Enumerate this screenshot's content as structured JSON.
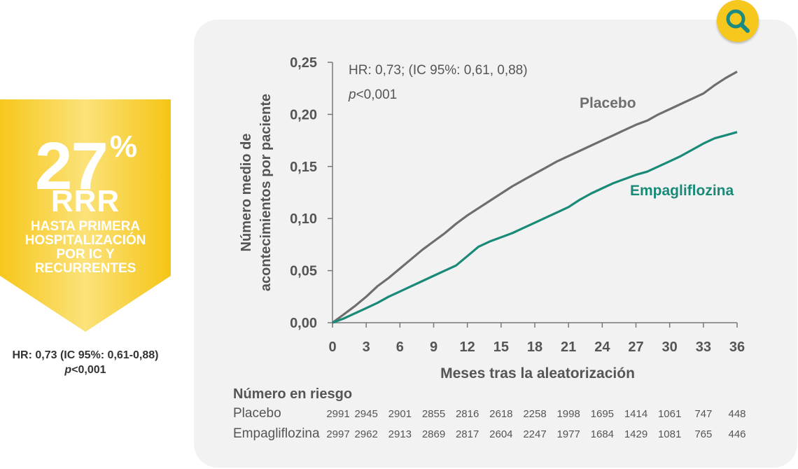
{
  "badge": {
    "percent": "27",
    "percent_symbol": "%",
    "rrr": "RRR",
    "subtitle_lines": [
      "HASTA PRIMERA",
      "HOSPITALIZACIÓN",
      "POR IC Y",
      "RECURRENTES"
    ],
    "hr_line1": "HR: 0,73 (IC 95%: 0,61-0,88)",
    "hr_line2_p": "p",
    "hr_line2_rest": "<0,001",
    "color": "#f6c71d"
  },
  "zoom_button": {
    "icon": "magnifier-icon",
    "color": "#f6c71d",
    "icon_color": "#1a8a82"
  },
  "chart_data": {
    "type": "line",
    "annotation_line1": "HR: 0,73; (IC 95%: 0,61, 0,88)",
    "annotation_p": "p",
    "annotation_line2_rest": "<0,001",
    "xlabel": "Meses tras la aleatorización",
    "ylabel_lines": [
      "Número medio de",
      "acontecimientos por paciente"
    ],
    "xlim": [
      0,
      36
    ],
    "ylim": [
      0,
      0.25
    ],
    "x_ticks": [
      0,
      3,
      6,
      9,
      12,
      15,
      18,
      21,
      24,
      27,
      30,
      33,
      36
    ],
    "x_tick_labels": [
      "0",
      "3",
      "6",
      "9",
      "12",
      "15",
      "18",
      "21",
      "24",
      "27",
      "30",
      "33",
      "36"
    ],
    "y_ticks": [
      0,
      0.05,
      0.1,
      0.15,
      0.2,
      0.25
    ],
    "y_tick_labels": [
      "0,00",
      "0,05",
      "0,10",
      "0,15",
      "0,20",
      "0,25"
    ],
    "series": [
      {
        "name": "Placebo",
        "color": "#6e6e6e",
        "x": [
          0,
          1,
          2,
          3,
          4,
          5,
          6,
          7,
          8,
          9,
          10,
          11,
          12,
          13,
          14,
          15,
          16,
          17,
          18,
          19,
          20,
          21,
          22,
          23,
          24,
          25,
          26,
          27,
          28,
          29,
          30,
          31,
          32,
          33,
          34,
          35,
          36
        ],
        "values": [
          0.0,
          0.008,
          0.016,
          0.025,
          0.035,
          0.043,
          0.052,
          0.061,
          0.07,
          0.078,
          0.086,
          0.095,
          0.103,
          0.11,
          0.117,
          0.124,
          0.131,
          0.137,
          0.143,
          0.149,
          0.155,
          0.16,
          0.165,
          0.17,
          0.175,
          0.18,
          0.185,
          0.19,
          0.194,
          0.2,
          0.205,
          0.21,
          0.215,
          0.22,
          0.228,
          0.235,
          0.241
        ]
      },
      {
        "name": "Empagliflozina",
        "color": "#1a8a78",
        "x": [
          0,
          1,
          2,
          3,
          4,
          5,
          6,
          7,
          8,
          9,
          10,
          11,
          12,
          13,
          14,
          15,
          16,
          17,
          18,
          19,
          20,
          21,
          22,
          23,
          24,
          25,
          26,
          27,
          28,
          29,
          30,
          31,
          32,
          33,
          34,
          35,
          36
        ],
        "values": [
          0.0,
          0.004,
          0.009,
          0.014,
          0.019,
          0.025,
          0.03,
          0.035,
          0.04,
          0.045,
          0.05,
          0.055,
          0.064,
          0.073,
          0.078,
          0.082,
          0.086,
          0.091,
          0.096,
          0.101,
          0.106,
          0.111,
          0.118,
          0.124,
          0.129,
          0.134,
          0.138,
          0.142,
          0.145,
          0.15,
          0.155,
          0.16,
          0.166,
          0.172,
          0.177,
          0.18,
          0.183
        ]
      }
    ],
    "legend_placement": "inline-labels",
    "grid": false
  },
  "risk_table": {
    "title": "Número en riesgo",
    "months": [
      0,
      3,
      6,
      9,
      12,
      15,
      18,
      21,
      24,
      27,
      30,
      33,
      36
    ],
    "rows": [
      {
        "label": "Placebo",
        "values": [
          "2991",
          "2945",
          "2901",
          "2855",
          "2816",
          "2618",
          "2258",
          "1998",
          "1695",
          "1414",
          "1061",
          "747",
          "448"
        ]
      },
      {
        "label": "Empagliflozina",
        "values": [
          "2997",
          "2962",
          "2913",
          "2869",
          "2817",
          "2604",
          "2247",
          "1977",
          "1684",
          "1429",
          "1081",
          "765",
          "446"
        ]
      }
    ]
  }
}
